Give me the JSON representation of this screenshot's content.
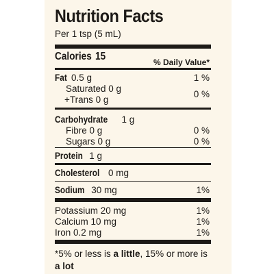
{
  "title": "Nutrition Facts",
  "serving": "Per 1 tsp (5 mL)",
  "calories": {
    "label": "Calories",
    "value": "15"
  },
  "daily_value_header": "% Daily Value*",
  "fat": {
    "label": "Fat",
    "amount": "0.5 g",
    "pct": "1 %",
    "saturated": "Saturated 0 g",
    "trans": "+Trans 0 g",
    "sat_trans_pct": "0 %"
  },
  "carbohydrate": {
    "label": "Carbohydrate",
    "amount": "1 g",
    "fibre": {
      "label": "Fibre 0 g",
      "pct": "0 %"
    },
    "sugars": {
      "label": "Sugars 0 g",
      "pct": "0 %"
    }
  },
  "protein": {
    "label": "Protein",
    "amount": "1 g"
  },
  "cholesterol": {
    "label": "Cholesterol",
    "amount": "0 mg"
  },
  "sodium": {
    "label": "Sodium",
    "amount": "30 mg",
    "pct": "1%"
  },
  "minerals": [
    {
      "label": "Potassium 20 mg",
      "pct": "1%"
    },
    {
      "label": "Calcium 10 mg",
      "pct": "1%"
    },
    {
      "label": "Iron 0.2 mg",
      "pct": "1%"
    }
  ],
  "footnote": {
    "part1": "*5% or less is ",
    "little": "a little",
    "part2": ", 15% or more is ",
    "lot": "a lot"
  }
}
